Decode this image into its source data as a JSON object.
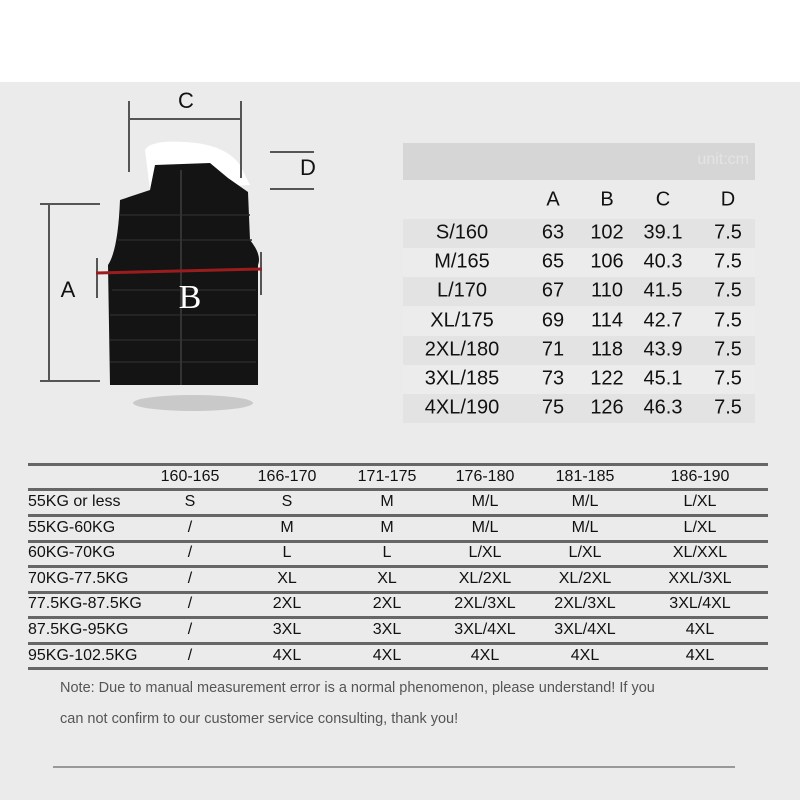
{
  "diagram": {
    "labels": {
      "a": "A",
      "b": "B",
      "c": "C",
      "d": "D"
    },
    "colors": {
      "vest": "#141414",
      "b_line": "#9b1c1c",
      "dim_line": "#555555"
    }
  },
  "measure_table": {
    "unit": "unit:cm",
    "headers": [
      "",
      "A",
      "B",
      "C",
      "D"
    ],
    "rows": [
      [
        "S/160",
        "63",
        "102",
        "39.1",
        "7.5"
      ],
      [
        "M/165",
        "65",
        "106",
        "40.3",
        "7.5"
      ],
      [
        "L/170",
        "67",
        "110",
        "41.5",
        "7.5"
      ],
      [
        "XL/175",
        "69",
        "114",
        "42.7",
        "7.5"
      ],
      [
        "2XL/180",
        "71",
        "118",
        "43.9",
        "7.5"
      ],
      [
        "3XL/185",
        "73",
        "122",
        "45.1",
        "7.5"
      ],
      [
        "4XL/190",
        "75",
        "126",
        "46.3",
        "7.5"
      ]
    ]
  },
  "fit_table": {
    "headers": [
      "",
      "160-165",
      "166-170",
      "171-175",
      "176-180",
      "181-185",
      "186-190"
    ],
    "rows": [
      [
        "55KG or less",
        "S",
        "S",
        "M",
        "M/L",
        "M/L",
        "L/XL"
      ],
      [
        "55KG-60KG",
        "/",
        "M",
        "M",
        "M/L",
        "M/L",
        "L/XL"
      ],
      [
        "60KG-70KG",
        "/",
        "L",
        "L",
        "L/XL",
        "L/XL",
        "XL/XXL"
      ],
      [
        "70KG-77.5KG",
        "/",
        "XL",
        "XL",
        "XL/2XL",
        "XL/2XL",
        "XXL/3XL"
      ],
      [
        "77.5KG-87.5KG",
        "/",
        "2XL",
        "2XL",
        "2XL/3XL",
        "2XL/3XL",
        "3XL/4XL"
      ],
      [
        "87.5KG-95KG",
        "/",
        "3XL",
        "3XL",
        "3XL/4XL",
        "3XL/4XL",
        "4XL"
      ],
      [
        "95KG-102.5KG",
        "/",
        "4XL",
        "4XL",
        "4XL",
        "4XL",
        "4XL"
      ]
    ]
  },
  "note": {
    "line1": "Note: Due to manual measurement error is a normal phenomenon, please understand! If you",
    "line2": "can not confirm to our customer service consulting, thank you!"
  }
}
